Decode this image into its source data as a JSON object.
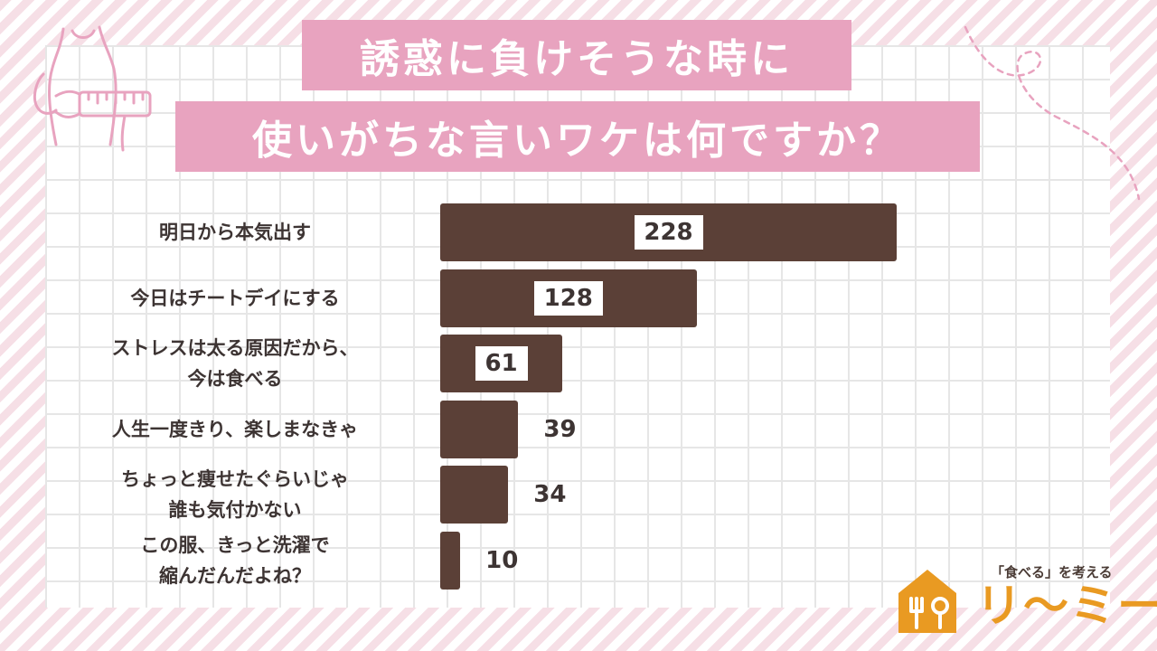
{
  "title": {
    "line1": "誘惑に負けそうな時に",
    "line2": "使いがちな言いワケは何ですか？"
  },
  "chart_data": {
    "type": "bar",
    "orientation": "horizontal",
    "categories": [
      [
        "明日から本気出す"
      ],
      [
        "今日はチートデイにする"
      ],
      [
        "ストレスは太る原因だから、",
        "今は食べる"
      ],
      [
        "人生一度きり、楽しまなきゃ"
      ],
      [
        "ちょっと痩せたぐらいじゃ",
        "誰も気付かない"
      ],
      [
        "この服、きっと洗濯で",
        "縮んだんだよね？"
      ]
    ],
    "values": [
      228,
      128,
      61,
      39,
      34,
      10
    ],
    "xlim": [
      0,
      228
    ],
    "bar_color": "#5b4037",
    "grid": true
  },
  "brand": {
    "tagline": "「食べる」を考える",
    "name": "リ〜ミー",
    "color": "#e99a22"
  },
  "colors": {
    "title_bg": "#e8a3bf",
    "stripe": "#f6dfe6",
    "text": "#3d3433"
  }
}
